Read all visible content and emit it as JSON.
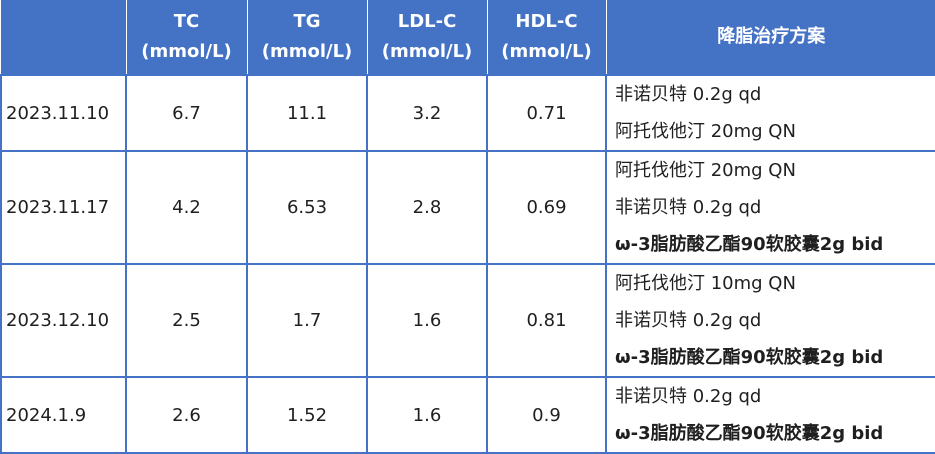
{
  "header": {
    "tc": [
      "TC",
      "(mmol/L)"
    ],
    "tg": [
      "TG",
      "(mmol/L)"
    ],
    "ldl": [
      "LDL-C",
      "(mmol/L)"
    ],
    "hdl": [
      "HDL-C",
      "(mmol/L)"
    ],
    "plan": "降脂治疗方案"
  },
  "rows": [
    {
      "date": "2023.11.10",
      "tc": "6.7",
      "tg": "11.1",
      "ldl": "3.2",
      "hdl": "0.71",
      "plan": [
        "非诺贝特 0.2g qd",
        "阿托伐他汀 20mg QN"
      ]
    },
    {
      "date": "2023.11.17",
      "tc": "4.2",
      "tg": "6.53",
      "ldl": "2.8",
      "hdl": "0.69",
      "plan": [
        "阿托伐他汀 20mg QN",
        "非诺贝特 0.2g qd",
        "ω-3脂肪酸乙酯90软胶囊2g bid"
      ]
    },
    {
      "date": "2023.12.10",
      "tc": "2.5",
      "tg": "1.7",
      "ldl": "1.6",
      "hdl": "0.81",
      "plan": [
        "阿托伐他汀 10mg QN",
        "非诺贝特 0.2g qd",
        "ω-3脂肪酸乙酯90软胶囊2g bid"
      ]
    },
    {
      "date": "2024.1.9",
      "tc": "2.6",
      "tg": "1.52",
      "ldl": "1.6",
      "hdl": "0.9",
      "plan": [
        "非诺贝特 0.2g qd",
        "ω-3脂肪酸乙酯90软胶囊2g bid"
      ]
    }
  ],
  "colors": {
    "header_bg": "#4472c4",
    "header_text": "#ffffff",
    "grid": "#4472c4"
  }
}
